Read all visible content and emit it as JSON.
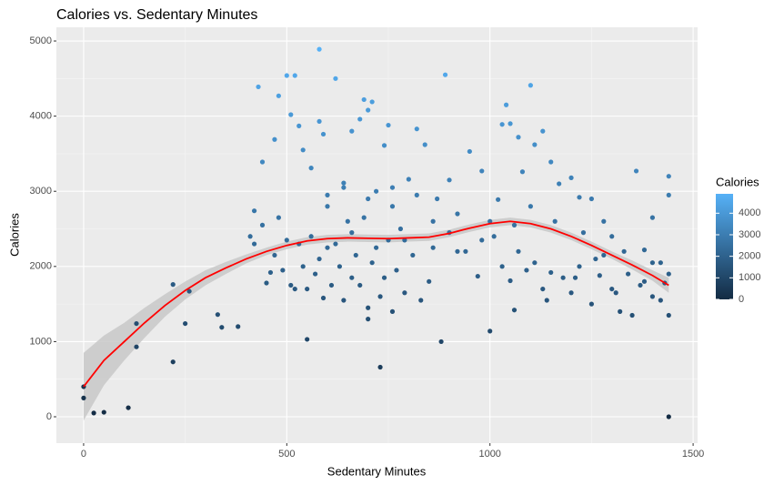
{
  "chart_data": {
    "type": "scatter",
    "title": "Calories vs. Sedentary Minutes",
    "x_label": "Sedentary Minutes",
    "y_label": "Calories",
    "xlim": [
      -67,
      1511
    ],
    "ylim": [
      -351,
      5182
    ],
    "xticks": [
      0,
      500,
      1000,
      1500
    ],
    "yticks": [
      0,
      1000,
      2000,
      3000,
      4000,
      5000
    ],
    "grid": true,
    "series": [
      {
        "name": "Calories",
        "x": [
          0,
          0,
          25,
          50,
          110,
          130,
          130,
          220,
          220,
          250,
          260,
          330,
          340,
          380,
          410,
          420,
          430,
          440,
          450,
          470,
          480,
          480,
          500,
          500,
          510,
          520,
          520,
          530,
          540,
          550,
          560,
          580,
          580,
          590,
          600,
          620,
          640,
          660,
          680,
          690,
          700,
          710,
          720,
          730,
          740,
          750,
          760,
          780,
          800,
          820,
          840,
          860,
          880,
          890,
          900,
          920,
          950,
          980,
          1000,
          1020,
          1030,
          1040,
          1050,
          1070,
          1080,
          1100,
          1110,
          1130,
          1150,
          1170,
          1200,
          1220,
          1250,
          1280,
          1300,
          1330,
          1360,
          1380,
          1400,
          1420,
          1440,
          1440,
          1440,
          1440,
          1430,
          1400,
          1380,
          1350,
          1320,
          1300,
          1270,
          1250,
          1220,
          1200,
          1180,
          1150,
          1130,
          1110,
          1090,
          1070,
          1060,
          1050,
          1030,
          1010,
          1000,
          970,
          940,
          920,
          900,
          870,
          850,
          830,
          810,
          790,
          770,
          760,
          750,
          740,
          730,
          720,
          710,
          700,
          690,
          680,
          670,
          660,
          650,
          640,
          630,
          620,
          610,
          600,
          590,
          580,
          570,
          560,
          550,
          540,
          530,
          510,
          490,
          470,
          460,
          440,
          420,
          640,
          700,
          760,
          820,
          1100,
          1160,
          1230,
          1280,
          1340,
          1400,
          1420,
          1060,
          980,
          860,
          790,
          700,
          660,
          600,
          1140,
          1210,
          1260,
          1310,
          1370,
          1440
        ],
        "y": [
          400,
          250,
          50,
          60,
          120,
          1240,
          930,
          1760,
          730,
          1240,
          1670,
          1360,
          1190,
          1200,
          2400,
          2740,
          4390,
          3390,
          1780,
          3690,
          2650,
          4270,
          4540,
          2350,
          4020,
          4540,
          1700,
          3870,
          3550,
          1030,
          3310,
          4890,
          3930,
          3760,
          2950,
          4500,
          3110,
          3800,
          3960,
          4220,
          4080,
          4190,
          3000,
          660,
          3610,
          3880,
          2800,
          2500,
          3160,
          3830,
          3620,
          2600,
          1000,
          4550,
          3150,
          2200,
          3530,
          3270,
          1140,
          2890,
          3890,
          4150,
          3900,
          3720,
          3260,
          4410,
          3620,
          3800,
          3390,
          3100,
          3180,
          2920,
          2900,
          2600,
          2400,
          2200,
          3270,
          2220,
          2650,
          2050,
          3200,
          2950,
          0,
          1350,
          1780,
          1600,
          1800,
          1350,
          1400,
          1700,
          1880,
          1500,
          2000,
          1650,
          1850,
          1920,
          1700,
          2050,
          1950,
          2200,
          1420,
          1810,
          2000,
          2400,
          2600,
          1870,
          2200,
          2700,
          2450,
          2900,
          1800,
          1550,
          2150,
          1650,
          1950,
          1400,
          2350,
          1850,
          1600,
          2250,
          2050,
          1450,
          2650,
          1750,
          2150,
          1850,
          2600,
          1550,
          2000,
          2300,
          1750,
          2800,
          1580,
          2100,
          1900,
          2400,
          1700,
          2000,
          2300,
          1750,
          1950,
          2150,
          1920,
          2550,
          2300,
          3050,
          2900,
          3050,
          2950,
          2800,
          2600,
          2450,
          2150,
          1900,
          2050,
          1550,
          2550,
          2350,
          2250,
          2350,
          1300,
          2450,
          2250,
          1550,
          1850,
          2100,
          1650,
          1750,
          1900
        ]
      }
    ],
    "color_scale": {
      "title": "Calories",
      "lim": [
        0,
        4900
      ],
      "ticks": [
        0,
        1000,
        2000,
        3000,
        4000
      ],
      "low": "#132B43",
      "high": "#56B1F7"
    },
    "smooth": {
      "color": "#ff0000",
      "band_color": "#c8c8c8",
      "x": [
        0,
        50,
        100,
        150,
        200,
        250,
        300,
        350,
        400,
        450,
        500,
        550,
        600,
        650,
        700,
        750,
        800,
        850,
        900,
        950,
        1000,
        1050,
        1100,
        1150,
        1200,
        1250,
        1300,
        1350,
        1400,
        1440
      ],
      "y": [
        400,
        750,
        1000,
        1250,
        1480,
        1680,
        1850,
        1980,
        2100,
        2200,
        2280,
        2340,
        2370,
        2380,
        2375,
        2370,
        2380,
        2390,
        2440,
        2510,
        2570,
        2600,
        2570,
        2500,
        2400,
        2280,
        2150,
        2020,
        1880,
        1750
      ],
      "lower": [
        -50,
        420,
        750,
        1050,
        1330,
        1560,
        1750,
        1900,
        2040,
        2150,
        2230,
        2290,
        2320,
        2330,
        2325,
        2320,
        2330,
        2340,
        2390,
        2460,
        2520,
        2550,
        2520,
        2450,
        2350,
        2230,
        2100,
        1960,
        1810,
        1650
      ],
      "upper": [
        850,
        1080,
        1250,
        1450,
        1630,
        1800,
        1950,
        2060,
        2160,
        2250,
        2330,
        2390,
        2420,
        2430,
        2425,
        2420,
        2430,
        2440,
        2490,
        2560,
        2620,
        2650,
        2620,
        2550,
        2450,
        2330,
        2200,
        2080,
        1950,
        1850
      ]
    }
  }
}
